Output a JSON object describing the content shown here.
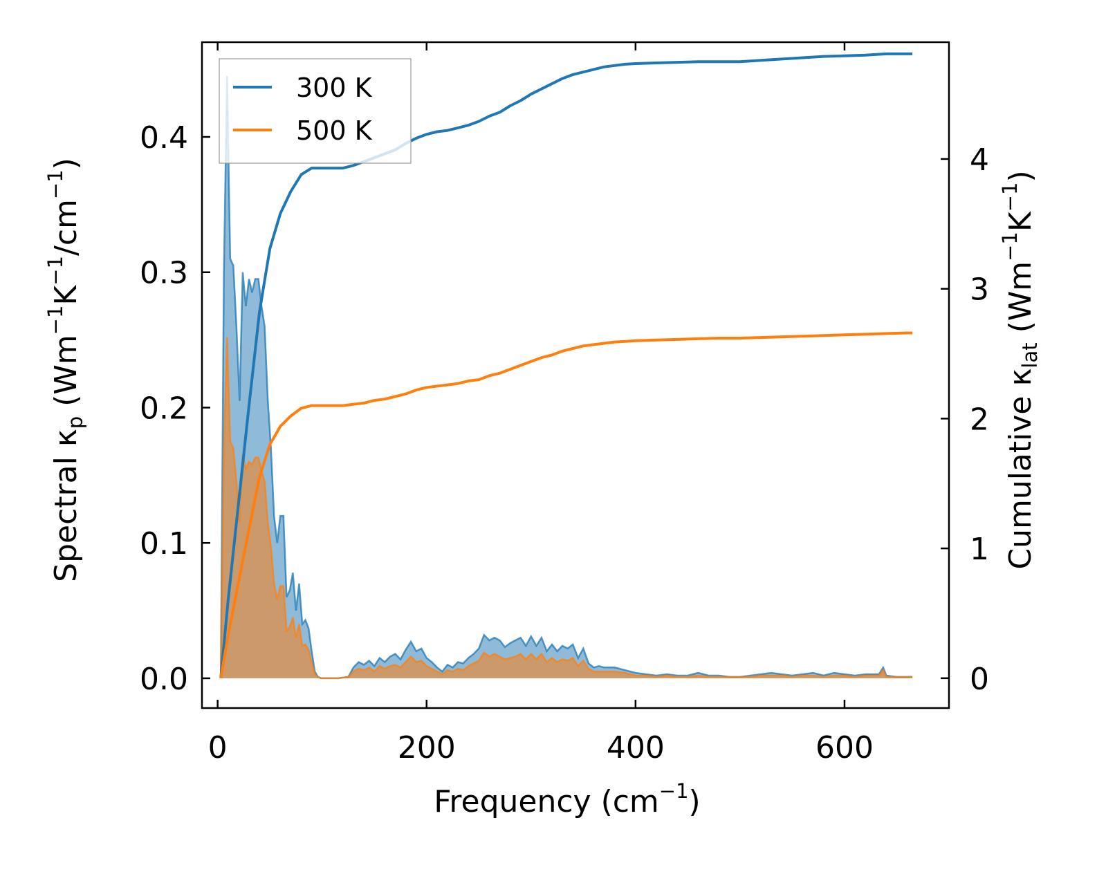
{
  "chart_data": {
    "type": "line",
    "x_axis": {
      "label_main": "Frequency (cm",
      "label_sup": "−1",
      "label_end": ")",
      "range": [
        -15,
        700
      ],
      "ticks": [
        0,
        200,
        400,
        600
      ],
      "tick_labels": [
        "0",
        "200",
        "400",
        "600"
      ]
    },
    "y_left": {
      "label_a": "Spectral κ",
      "label_a_sub": "p",
      "label_b": " (Wm",
      "label_b_sup": "−1",
      "label_c": "K",
      "label_c_sup": "−1",
      "label_d": "/cm",
      "label_d_sup": "−1",
      "label_e": ")",
      "range": [
        -0.022,
        0.47
      ],
      "ticks": [
        0.0,
        0.1,
        0.2,
        0.3,
        0.4
      ],
      "tick_labels": [
        "0.0",
        "0.1",
        "0.2",
        "0.3",
        "0.4"
      ]
    },
    "y_right": {
      "label_a": "Cumulative κ",
      "label_a_sub": "lat",
      "label_b": " (Wm",
      "label_b_sup": "−1",
      "label_c": "K",
      "label_c_sup": "−1",
      "label_d": ")",
      "range": [
        -0.23,
        4.9
      ],
      "ticks": [
        0,
        1,
        2,
        3,
        4
      ],
      "tick_labels": [
        "0",
        "1",
        "2",
        "3",
        "4"
      ]
    },
    "legend": {
      "location": "top-left",
      "entries": [
        "300 K",
        "500 K"
      ]
    },
    "series": [
      {
        "name": "300 K",
        "color": "#1f77b4",
        "spectral": {
          "x": [
            3,
            6,
            9,
            12,
            15,
            18,
            21,
            24,
            27,
            30,
            33,
            36,
            39,
            42,
            45,
            48,
            51,
            54,
            57,
            60,
            63,
            66,
            69,
            72,
            75,
            78,
            81,
            84,
            87,
            90,
            93,
            96,
            99,
            102,
            108,
            115,
            125,
            130,
            135,
            140,
            145,
            150,
            155,
            160,
            165,
            170,
            175,
            180,
            185,
            190,
            195,
            200,
            205,
            210,
            215,
            220,
            225,
            230,
            235,
            240,
            245,
            250,
            255,
            260,
            265,
            270,
            275,
            280,
            285,
            290,
            295,
            300,
            305,
            310,
            315,
            320,
            325,
            330,
            335,
            340,
            345,
            350,
            355,
            360,
            365,
            370,
            380,
            390,
            400,
            410,
            420,
            430,
            440,
            450,
            460,
            470,
            480,
            490,
            500,
            510,
            520,
            530,
            540,
            550,
            560,
            570,
            580,
            590,
            600,
            610,
            620,
            630,
            633,
            637,
            640,
            650,
            660,
            665
          ],
          "y": [
            0.0,
            0.3,
            0.445,
            0.31,
            0.305,
            0.26,
            0.205,
            0.3,
            0.275,
            0.295,
            0.285,
            0.295,
            0.295,
            0.275,
            0.26,
            0.205,
            0.17,
            0.12,
            0.1,
            0.12,
            0.12,
            0.06,
            0.065,
            0.078,
            0.05,
            0.07,
            0.04,
            0.043,
            0.037,
            0.02,
            0.005,
            0.001,
            0.0,
            0.0,
            0.0,
            0.0,
            0.001,
            0.008,
            0.012,
            0.01,
            0.013,
            0.009,
            0.015,
            0.012,
            0.016,
            0.018,
            0.014,
            0.021,
            0.027,
            0.02,
            0.022,
            0.015,
            0.012,
            0.008,
            0.005,
            0.01,
            0.008,
            0.012,
            0.011,
            0.015,
            0.018,
            0.022,
            0.032,
            0.028,
            0.03,
            0.028,
            0.023,
            0.026,
            0.028,
            0.03,
            0.024,
            0.031,
            0.024,
            0.03,
            0.02,
            0.025,
            0.02,
            0.024,
            0.022,
            0.025,
            0.015,
            0.022,
            0.011,
            0.008,
            0.009,
            0.008,
            0.008,
            0.006,
            0.004,
            0.003,
            0.002,
            0.003,
            0.002,
            0.002,
            0.004,
            0.002,
            0.002,
            0.001,
            0.001,
            0.002,
            0.003,
            0.004,
            0.003,
            0.002,
            0.003,
            0.004,
            0.002,
            0.004,
            0.003,
            0.002,
            0.003,
            0.003,
            0.003,
            0.008,
            0.002,
            0.001,
            0.001,
            0.001
          ]
        },
        "cumulative": {
          "x": [
            3,
            10,
            20,
            30,
            40,
            50,
            60,
            70,
            80,
            90,
            100,
            110,
            120,
            130,
            140,
            150,
            160,
            170,
            180,
            190,
            200,
            210,
            220,
            230,
            240,
            250,
            260,
            270,
            280,
            290,
            300,
            310,
            320,
            330,
            340,
            350,
            360,
            370,
            380,
            390,
            400,
            420,
            440,
            460,
            480,
            500,
            520,
            540,
            560,
            580,
            600,
            620,
            640,
            660,
            665
          ],
          "y": [
            0.0,
            0.6,
            1.35,
            2.1,
            2.82,
            3.31,
            3.58,
            3.75,
            3.88,
            3.93,
            3.93,
            3.93,
            3.93,
            3.95,
            3.98,
            4.01,
            4.04,
            4.07,
            4.12,
            4.16,
            4.19,
            4.21,
            4.22,
            4.24,
            4.26,
            4.29,
            4.33,
            4.36,
            4.41,
            4.45,
            4.5,
            4.54,
            4.58,
            4.62,
            4.65,
            4.67,
            4.69,
            4.71,
            4.72,
            4.73,
            4.735,
            4.74,
            4.745,
            4.75,
            4.75,
            4.75,
            4.76,
            4.77,
            4.78,
            4.79,
            4.795,
            4.8,
            4.81,
            4.81,
            4.81
          ]
        }
      },
      {
        "name": "500 K",
        "color": "#ff7f0e",
        "spectral": {
          "x": [
            3,
            6,
            9,
            12,
            15,
            18,
            21,
            24,
            27,
            30,
            33,
            36,
            39,
            42,
            45,
            48,
            51,
            54,
            57,
            60,
            63,
            66,
            69,
            72,
            75,
            78,
            81,
            84,
            87,
            90,
            93,
            96,
            99,
            102,
            108,
            115,
            125,
            130,
            135,
            140,
            145,
            150,
            155,
            160,
            165,
            170,
            175,
            180,
            185,
            190,
            195,
            200,
            205,
            210,
            215,
            220,
            225,
            230,
            235,
            240,
            245,
            250,
            255,
            260,
            265,
            270,
            275,
            280,
            285,
            290,
            295,
            300,
            305,
            310,
            315,
            320,
            325,
            330,
            335,
            340,
            345,
            350,
            355,
            360,
            365,
            370,
            380,
            390,
            400,
            410,
            420,
            430,
            440,
            450,
            460,
            470,
            480,
            490,
            500,
            510,
            520,
            530,
            540,
            550,
            560,
            570,
            580,
            590,
            600,
            610,
            620,
            630,
            633,
            637,
            640,
            650,
            660,
            665
          ],
          "y": [
            0.0,
            0.17,
            0.252,
            0.175,
            0.17,
            0.145,
            0.115,
            0.165,
            0.155,
            0.16,
            0.158,
            0.163,
            0.163,
            0.153,
            0.145,
            0.115,
            0.097,
            0.07,
            0.058,
            0.068,
            0.068,
            0.035,
            0.038,
            0.045,
            0.03,
            0.04,
            0.024,
            0.025,
            0.021,
            0.012,
            0.003,
            0.001,
            0.0,
            0.0,
            0.0,
            0.0,
            0.001,
            0.005,
            0.007,
            0.006,
            0.008,
            0.005,
            0.009,
            0.007,
            0.009,
            0.01,
            0.008,
            0.012,
            0.016,
            0.012,
            0.013,
            0.009,
            0.007,
            0.005,
            0.003,
            0.006,
            0.005,
            0.007,
            0.006,
            0.009,
            0.011,
            0.013,
            0.019,
            0.016,
            0.018,
            0.016,
            0.014,
            0.015,
            0.016,
            0.018,
            0.014,
            0.018,
            0.014,
            0.018,
            0.012,
            0.015,
            0.012,
            0.014,
            0.013,
            0.015,
            0.009,
            0.013,
            0.007,
            0.005,
            0.005,
            0.005,
            0.005,
            0.004,
            0.002,
            0.002,
            0.001,
            0.002,
            0.001,
            0.001,
            0.002,
            0.001,
            0.001,
            0.001,
            0.001,
            0.001,
            0.002,
            0.002,
            0.002,
            0.001,
            0.002,
            0.002,
            0.001,
            0.002,
            0.002,
            0.001,
            0.002,
            0.002,
            0.002,
            0.006,
            0.001,
            0.001,
            0.001,
            0.001
          ]
        },
        "cumulative": {
          "x": [
            3,
            10,
            20,
            30,
            40,
            50,
            60,
            70,
            80,
            90,
            100,
            110,
            120,
            130,
            140,
            150,
            160,
            170,
            180,
            190,
            200,
            210,
            220,
            230,
            240,
            250,
            260,
            270,
            280,
            290,
            300,
            310,
            320,
            330,
            340,
            350,
            360,
            370,
            380,
            390,
            400,
            420,
            440,
            460,
            480,
            500,
            520,
            540,
            560,
            580,
            600,
            620,
            640,
            660,
            665
          ],
          "y": [
            0.0,
            0.33,
            0.74,
            1.15,
            1.55,
            1.8,
            1.94,
            2.02,
            2.08,
            2.1,
            2.1,
            2.1,
            2.1,
            2.11,
            2.12,
            2.14,
            2.15,
            2.17,
            2.19,
            2.22,
            2.24,
            2.25,
            2.26,
            2.27,
            2.29,
            2.3,
            2.33,
            2.35,
            2.38,
            2.41,
            2.44,
            2.47,
            2.49,
            2.52,
            2.54,
            2.56,
            2.57,
            2.58,
            2.59,
            2.595,
            2.6,
            2.605,
            2.61,
            2.615,
            2.62,
            2.62,
            2.625,
            2.63,
            2.635,
            2.64,
            2.645,
            2.65,
            2.655,
            2.66,
            2.66
          ]
        }
      }
    ]
  }
}
